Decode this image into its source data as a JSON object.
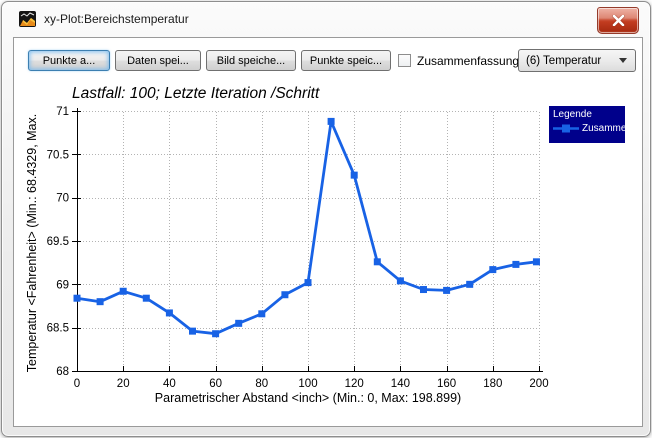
{
  "window": {
    "title": "xy-Plot:Bereichstemperatur"
  },
  "toolbar": {
    "buttons": [
      {
        "label": "Punkte a..."
      },
      {
        "label": "Daten spei..."
      },
      {
        "label": "Bild speiche..."
      },
      {
        "label": "Punkte speic..."
      }
    ],
    "checkbox": {
      "label": "Zusammenfassung",
      "checked": false
    },
    "dropdown": {
      "value": "(6) Temperatur"
    }
  },
  "chart_data": {
    "type": "line",
    "title": "Lastfall: 100; Letzte Iteration /Schritt",
    "xlabel": "Parametrischer Abstand <inch> (Min.: 0, Max: 198.899)",
    "ylabel": "Temperatur <Fahrenheit> (Min.: 68.4329, Max.",
    "xlim": [
      0,
      200
    ],
    "ylim": [
      68,
      71
    ],
    "xticks": [
      0,
      20,
      40,
      60,
      80,
      100,
      120,
      140,
      160,
      180,
      200
    ],
    "yticks": [
      68,
      68.5,
      69,
      69.5,
      70,
      70.5,
      71
    ],
    "grid": true,
    "legend": {
      "title": "Legende",
      "entries": [
        "Zusamme..."
      ],
      "position": "top-right",
      "bg": "#00008B"
    },
    "series": [
      {
        "name": "Zusamme...",
        "color": "#1862E5",
        "marker": "square",
        "x": [
          0,
          10,
          20,
          30,
          40,
          50,
          60,
          70,
          80,
          90,
          100,
          110,
          120,
          130,
          140,
          150,
          160,
          170,
          180,
          190,
          198.899
        ],
        "y": [
          68.84,
          68.8,
          68.92,
          68.84,
          68.67,
          68.46,
          68.43,
          68.55,
          68.66,
          68.88,
          69.02,
          70.88,
          70.26,
          69.26,
          69.04,
          68.94,
          68.93,
          69.0,
          69.17,
          69.23,
          69.26
        ]
      }
    ]
  }
}
